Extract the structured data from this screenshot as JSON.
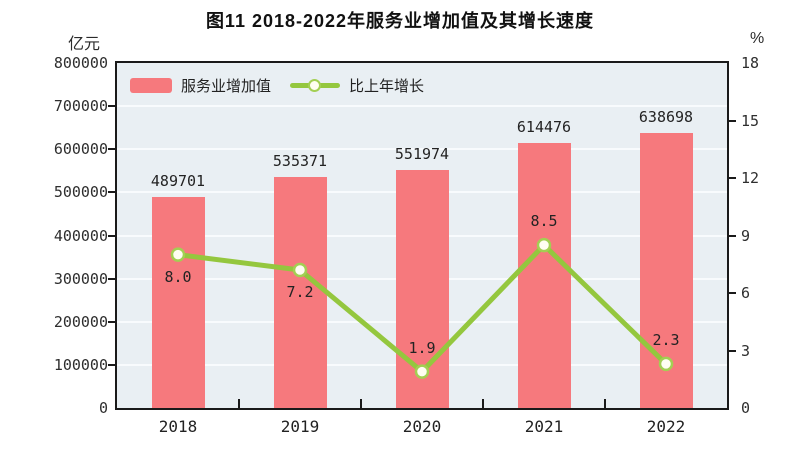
{
  "title": "图11  2018-2022年服务业增加值及其增长速度",
  "colors": {
    "bar": "#f6797d",
    "line": "#94c73e",
    "marker_fill": "#fffef2",
    "marker_stroke": "#a3cf53",
    "plot_background": "#e9eff3",
    "gridline": "#f8fbfd",
    "axis": "#1a1a1a",
    "text": "#232323"
  },
  "chart_data": {
    "type": "bar+line combo",
    "title": "图11  2018-2022年服务业增加值及其增长速度",
    "categories": [
      "2018",
      "2019",
      "2020",
      "2021",
      "2022"
    ],
    "series": [
      {
        "name": "服务业增加值",
        "type": "bar",
        "axis": "left",
        "values": [
          489701,
          535371,
          551974,
          614476,
          638698
        ],
        "labels": [
          "489701",
          "535371",
          "551974",
          "614476",
          "638698"
        ],
        "color": "#f6797d"
      },
      {
        "name": "比上年增长",
        "type": "line",
        "axis": "right",
        "values": [
          8.0,
          7.2,
          1.9,
          8.5,
          2.3
        ],
        "labels": [
          "8.0",
          "7.2",
          "1.9",
          "8.5",
          "2.3"
        ],
        "label_positions": [
          "below",
          "below",
          "above",
          "above",
          "above"
        ],
        "color": "#94c73e"
      }
    ],
    "left_axis": {
      "unit": "亿元",
      "min": 0,
      "max": 800000,
      "tick_step": 100000,
      "ticks": [
        "0",
        "100000",
        "200000",
        "300000",
        "400000",
        "500000",
        "600000",
        "700000",
        "800000"
      ]
    },
    "right_axis": {
      "unit": "%",
      "min": 0,
      "max": 18,
      "tick_step": 3,
      "ticks": [
        "0",
        "3",
        "6",
        "9",
        "12",
        "15",
        "18"
      ]
    },
    "legend_position": "top-left inside plot",
    "grid": true
  }
}
